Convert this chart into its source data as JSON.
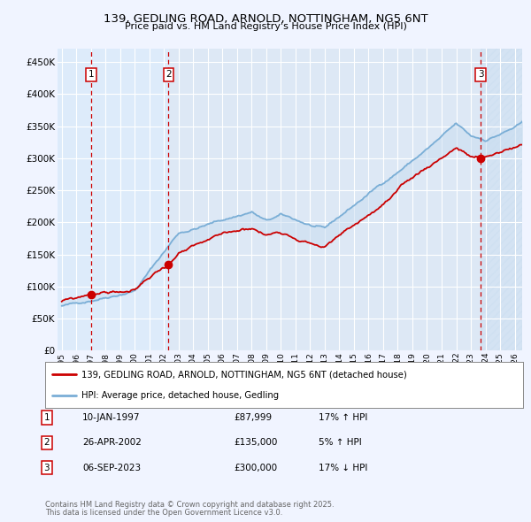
{
  "title": "139, GEDLING ROAD, ARNOLD, NOTTINGHAM, NG5 6NT",
  "subtitle": "Price paid vs. HM Land Registry's House Price Index (HPI)",
  "ylabel_ticks": [
    "£0",
    "£50K",
    "£100K",
    "£150K",
    "£200K",
    "£250K",
    "£300K",
    "£350K",
    "£400K",
    "£450K"
  ],
  "ytick_values": [
    0,
    50000,
    100000,
    150000,
    200000,
    250000,
    300000,
    350000,
    400000,
    450000
  ],
  "ylim": [
    0,
    470000
  ],
  "xlim_start": 1994.7,
  "xlim_end": 2026.5,
  "background_color": "#f0f4ff",
  "plot_bg_color": "#dde8f5",
  "grid_color": "#ffffff",
  "red_line_color": "#cc0000",
  "blue_line_color": "#7aaed6",
  "blue_fill_color": "#c8ddf0",
  "hatch_color": "#c8ddf0",
  "transactions": [
    {
      "num": 1,
      "date_year": 1997.03,
      "price": 87999,
      "label": "10-JAN-1997",
      "price_str": "£87,999",
      "hpi_str": "17% ↑ HPI"
    },
    {
      "num": 2,
      "date_year": 2002.31,
      "price": 135000,
      "label": "26-APR-2002",
      "price_str": "£135,000",
      "hpi_str": "5% ↑ HPI"
    },
    {
      "num": 3,
      "date_year": 2023.67,
      "price": 300000,
      "label": "06-SEP-2023",
      "price_str": "£300,000",
      "hpi_str": "17% ↓ HPI"
    }
  ],
  "legend_line1": "139, GEDLING ROAD, ARNOLD, NOTTINGHAM, NG5 6NT (detached house)",
  "legend_line2": "HPI: Average price, detached house, Gedling",
  "footer1": "Contains HM Land Registry data © Crown copyright and database right 2025.",
  "footer2": "This data is licensed under the Open Government Licence v3.0."
}
